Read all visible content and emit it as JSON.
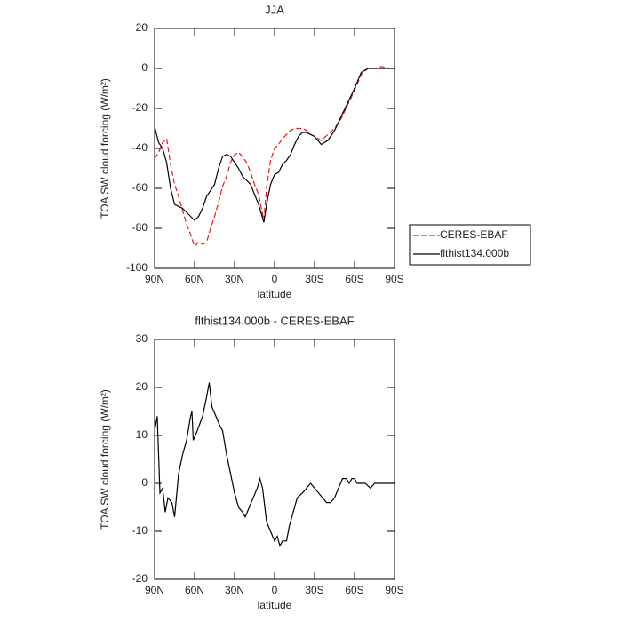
{
  "chart_data": [
    {
      "type": "line",
      "title": "JJA",
      "xlabel": "latitude",
      "ylabel": "TOA SW cloud forcing (W/m²)",
      "x": [
        90,
        87,
        84,
        81,
        78,
        75,
        72,
        69,
        66,
        63,
        60,
        57,
        54,
        51,
        48,
        45,
        42,
        39,
        36,
        33,
        30,
        27,
        24,
        21,
        18,
        15,
        12,
        8,
        6,
        3,
        0,
        -3,
        -6,
        -9,
        -12,
        -15,
        -18,
        -21,
        -24,
        -27,
        -30,
        -35,
        -40,
        -45,
        -50,
        -55,
        -60,
        -65,
        -70,
        -75,
        -80,
        -85,
        -90
      ],
      "series": [
        {
          "name": "CERES-EBAF",
          "color": "#e41a1c",
          "linestyle": "dashed",
          "values": [
            -45,
            -42,
            -37,
            -35,
            -48,
            -58,
            -64,
            -71,
            -78,
            -83,
            -89,
            -87,
            -88,
            -87,
            -80,
            -74,
            -67,
            -59,
            -54,
            -47,
            -43,
            -42,
            -44,
            -47,
            -52,
            -58,
            -63,
            -76,
            -60,
            -46,
            -40,
            -38,
            -35,
            -33,
            -31,
            -30,
            -30,
            -30,
            -31,
            -33,
            -34,
            -36,
            -33,
            -30,
            -25,
            -18,
            -11,
            -3,
            0,
            0,
            1,
            0,
            0
          ]
        },
        {
          "name": "flthist134.000b",
          "color": "#000000",
          "linestyle": "solid",
          "values": [
            -29,
            -37,
            -40,
            -47,
            -60,
            -68,
            -69,
            -70,
            -72,
            -74,
            -76,
            -74,
            -70,
            -64,
            -61,
            -58,
            -50,
            -44,
            -43,
            -44,
            -47,
            -50,
            -54,
            -56,
            -58,
            -63,
            -68,
            -77,
            -68,
            -58,
            -53,
            -52,
            -48,
            -46,
            -43,
            -38,
            -34,
            -32,
            -32,
            -33,
            -34,
            -38,
            -36,
            -31,
            -24,
            -17,
            -10,
            -2,
            0,
            0,
            0,
            0,
            0
          ]
        }
      ],
      "xlim": [
        90,
        -90
      ],
      "xticks": [
        {
          "value": 90,
          "label": "90N"
        },
        {
          "value": 60,
          "label": "60N"
        },
        {
          "value": 30,
          "label": "30N"
        },
        0,
        {
          "value": -30,
          "label": "30S"
        },
        {
          "value": -60,
          "label": "60S"
        },
        {
          "value": -90,
          "label": "90S"
        }
      ],
      "ylim": [
        -100,
        20
      ],
      "yticks": [
        20,
        0,
        -20,
        -40,
        -60,
        -80,
        -100
      ],
      "legend": "right"
    },
    {
      "type": "line",
      "title": "flthist134.000b - CERES-EBAF",
      "xlabel": "latitude",
      "ylabel": "TOA SW cloud forcing (W/m²)",
      "x": [
        90,
        88,
        86,
        84,
        82,
        80,
        77,
        75,
        72,
        69,
        66,
        63,
        62,
        61,
        58,
        54,
        51,
        49,
        47,
        44,
        41,
        39,
        36,
        33,
        30,
        27,
        24,
        22,
        19,
        16,
        13,
        11,
        9,
        6,
        3,
        0,
        -2,
        -4,
        -6,
        -9,
        -11,
        -14,
        -17,
        -21,
        -24,
        -27,
        -30,
        -33,
        -36,
        -39,
        -42,
        -45,
        -48,
        -51,
        -54,
        -56,
        -58,
        -60,
        -62,
        -65,
        -68,
        -72,
        -75,
        -80,
        -85,
        -90
      ],
      "values": [
        11,
        14,
        -2,
        -1,
        -6,
        -3,
        -4,
        -7,
        2,
        6,
        9,
        14,
        15,
        9,
        11,
        14,
        18,
        21,
        16,
        14,
        12,
        11,
        6,
        2,
        -2,
        -5,
        -6,
        -7,
        -5,
        -3,
        -1,
        1,
        -1,
        -8,
        -10,
        -12,
        -11,
        -13,
        -12,
        -12,
        -9,
        -6,
        -3,
        -2,
        -1,
        0,
        -1,
        -2,
        -3,
        -4,
        -4,
        -3,
        -1,
        1,
        1,
        0,
        1,
        1,
        0,
        0,
        0,
        -1,
        0,
        0,
        0,
        0
      ],
      "color": "#000000",
      "xlim": [
        90,
        -90
      ],
      "xticks": [
        {
          "value": 90,
          "label": "90N"
        },
        {
          "value": 60,
          "label": "60N"
        },
        {
          "value": 30,
          "label": "30N"
        },
        0,
        {
          "value": -30,
          "label": "30S"
        },
        {
          "value": -60,
          "label": "60S"
        },
        {
          "value": -90,
          "label": "90S"
        }
      ],
      "ylim": [
        -20,
        30
      ],
      "yticks": [
        30,
        20,
        10,
        0,
        -10,
        -20
      ]
    }
  ]
}
